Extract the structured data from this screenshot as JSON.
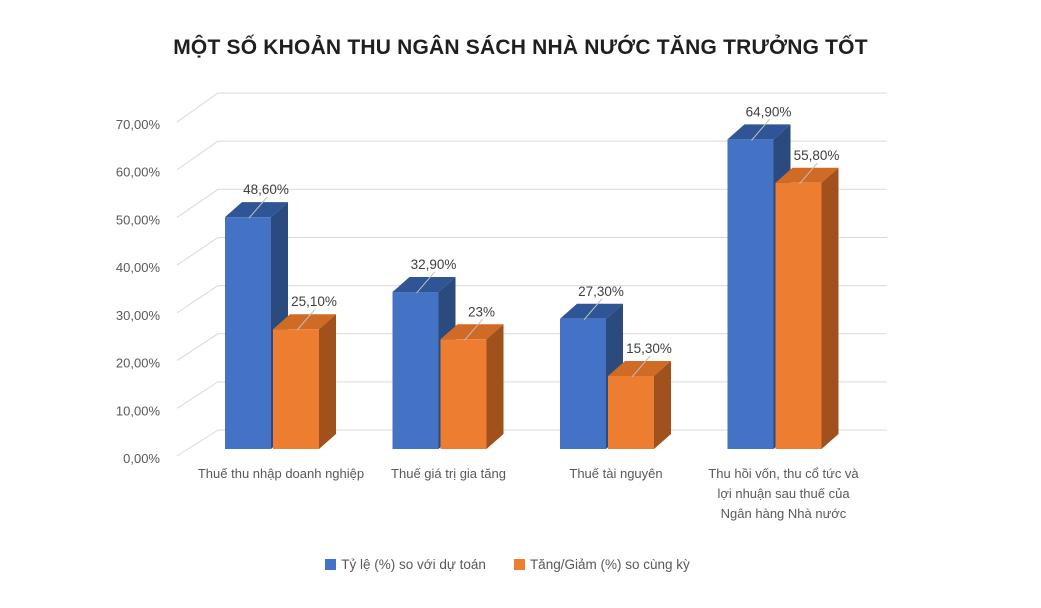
{
  "chart_data": {
    "type": "bar",
    "style": "3d-clustered",
    "title": "MỘT SỐ KHOẢN THU NGÂN SÁCH NHÀ NƯỚC TĂNG TRƯỞNG TỐT",
    "categories": [
      "Thuế thu nhập doanh nghiệp",
      "Thuế giá trị gia tăng",
      "Thuế tài nguyên",
      "Thu hồi vốn, thu cổ tức và lợi nhuận sau thuế của Ngân hàng Nhà nước"
    ],
    "series": [
      {
        "name": "Tỷ lệ (%) so với dự toán",
        "values": [
          48.6,
          32.9,
          27.3,
          64.9
        ],
        "labels": [
          "48,60%",
          "32,90%",
          "27,30%",
          "64,90%"
        ],
        "color_front": "#4472C4",
        "color_top": "#2F5597",
        "color_side": "#2B4A7E"
      },
      {
        "name": "Tăng/Giảm (%) so cùng kỳ",
        "values": [
          25.1,
          23.0,
          15.3,
          55.8
        ],
        "labels": [
          "25,10%",
          "23%",
          "15,30%",
          "55,80%"
        ],
        "color_front": "#ED7D31",
        "color_top": "#CF6B24",
        "color_side": "#A0511C"
      }
    ],
    "yaxis": {
      "min": 0,
      "max": 70,
      "step": 10,
      "tick_labels": [
        "0,00%",
        "10,00%",
        "20,00%",
        "30,00%",
        "40,00%",
        "50,00%",
        "60,00%",
        "70,00%"
      ]
    },
    "grid": true,
    "legend_position": "bottom",
    "colors": {
      "gridline": "#D9D9D9",
      "axis_text": "#595959",
      "data_label_text": "#3f3f3f",
      "leader_line": "#BFBFBF",
      "title_text": "#1f1f1f"
    }
  }
}
